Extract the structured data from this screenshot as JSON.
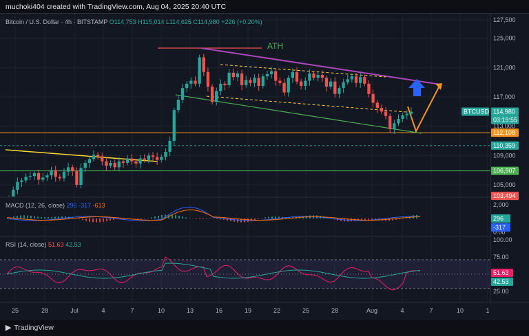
{
  "header": {
    "caption": "muchoki404 created with TradingView.com, Aug 04, 2025 20:40 UTC"
  },
  "legend": {
    "symbol": "Bitcoin / U.S. Dollar · 4h · BITSTAMP",
    "ohlc": "O114,753 H115,014 L114,625 C114,980",
    "change": "+226 (+0.20%)"
  },
  "macd": {
    "label": "MACD (12, 26, close)",
    "v1": "296",
    "v2": "-317",
    "v3": "-613"
  },
  "rsi": {
    "label": "RSI (14, close)",
    "v1": "51.63",
    "v2": "42.53"
  },
  "footer": {
    "brand": "TradingView"
  },
  "colors": {
    "bg": "#131722",
    "up": "#26a69a",
    "down": "#ef5350",
    "purple": "#ab47bc",
    "orange": "#f7931a",
    "green": "#4caf50",
    "yellow": "#fdd835",
    "blue": "#2962ff"
  },
  "annotations": {
    "ath": "ATH"
  },
  "chart_data": {
    "type": "candlestick",
    "price_axis": {
      "ticks": [
        127500,
        125000,
        121000,
        117000,
        113000,
        109000,
        105000
      ],
      "labels": [
        "127,500",
        "125,000",
        "121,000",
        "117,000",
        "113,000",
        "109,000",
        "105,000"
      ]
    },
    "time_axis": {
      "labels": [
        "25",
        "28",
        "Jul",
        "4",
        "7",
        "10",
        "13",
        "16",
        "19",
        "22",
        "25",
        "28",
        "Aug",
        "4",
        "7",
        "10",
        "1"
      ]
    },
    "price_labels": [
      {
        "text": "BTCUSD",
        "value": 114980,
        "color": "#26a69a"
      },
      {
        "text": "114,980",
        "value": 114980,
        "color": "#26a69a"
      },
      {
        "text": "03:19:55",
        "value": 114980,
        "color": "#26a69a"
      },
      {
        "text": "112,108",
        "value": 112108,
        "color": "#f7931a"
      },
      {
        "text": "110,359",
        "value": 110359,
        "color": "#26a69a"
      },
      {
        "text": "106,907",
        "value": 106907,
        "color": "#4caf50"
      },
      {
        "text": "103,494",
        "value": 103494,
        "color": "#ef5350"
      }
    ],
    "levels": [
      {
        "value": 112108,
        "color": "#f7931a",
        "style": "solid"
      },
      {
        "value": 110359,
        "color": "#26a69a",
        "style": "dashed"
      },
      {
        "value": 106907,
        "color": "#4caf50",
        "style": "solid"
      }
    ],
    "close_series": [
      103200,
      104300,
      105400,
      105600,
      106100,
      106200,
      106600,
      105700,
      106000,
      106300,
      107000,
      106100,
      105900,
      106800,
      107400,
      106900,
      105000,
      107300,
      108000,
      108500,
      109100,
      108900,
      108200,
      107600,
      108000,
      107400,
      108200,
      108000,
      108600,
      108200,
      107900,
      108600,
      108400,
      109000,
      108800,
      108400,
      108800,
      109500,
      111000,
      115200,
      116600,
      118200,
      118800,
      119200,
      118800,
      122400,
      120400,
      118400,
      116300,
      117800,
      118800,
      118600,
      120300,
      119700,
      120200,
      118600,
      119300,
      118900,
      119600,
      118500,
      119800,
      120100,
      120500,
      119200,
      118900,
      117600,
      119600,
      120400,
      119100,
      118500,
      119200,
      120200,
      119600,
      120000,
      119600,
      118400,
      119100,
      117400,
      118200,
      119000,
      119400,
      119800,
      118900,
      119700,
      118800,
      117400,
      116200,
      115500,
      115000,
      114400,
      112600,
      113400,
      114000,
      114500,
      114700,
      114980
    ],
    "macd": {
      "macd": 296,
      "signal": -317,
      "histogram": -613,
      "axis": [
        "2,000",
        "0.00"
      ]
    },
    "rsi": {
      "rsi": 51.63,
      "ma": 42.53,
      "axis": [
        "75.00",
        "25.00",
        "100.00"
      ]
    }
  }
}
